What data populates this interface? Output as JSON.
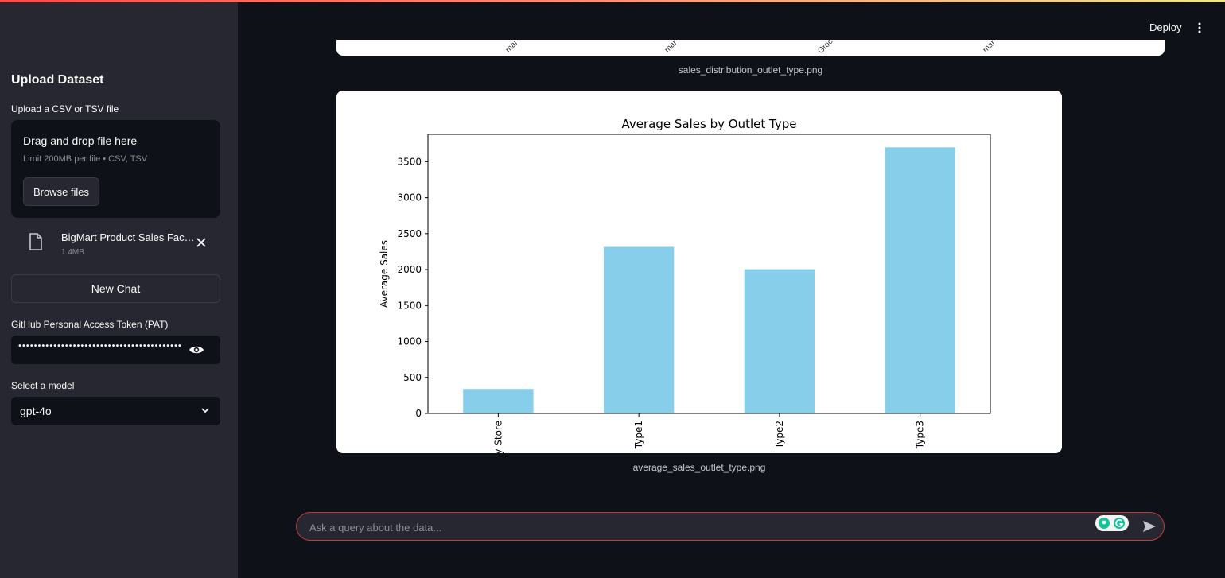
{
  "sidebar": {
    "title": "Upload Dataset",
    "upload_label": "Upload a CSV or TSV file",
    "dropzone": {
      "title": "Drag and drop file here",
      "subtitle": "Limit 200MB per file • CSV, TSV",
      "browse_label": "Browse files"
    },
    "file": {
      "name": "BigMart Product Sales Factors.csv",
      "size": "1.4MB"
    },
    "new_chat_label": "New Chat",
    "pat_label": "GitHub Personal Access Token (PAT)",
    "pat_value": "••••••••••••••••••••••••••••••••••••••••••••••••••••••",
    "model_label": "Select a model",
    "model_value": "gpt-4o"
  },
  "header": {
    "deploy_label": "Deploy",
    "menu_icon": "kebab-menu-icon"
  },
  "main": {
    "previous_image_caption": "sales_distribution_outlet_type.png",
    "previous_chart_tick_fragments": [
      "mar",
      "mar",
      "Groc",
      "mar"
    ],
    "chart_caption": "average_sales_outlet_type.png",
    "chat_placeholder": "Ask a query about the data..."
  },
  "chart_data": {
    "type": "bar",
    "title": "Average Sales by Outlet Type",
    "xlabel": "",
    "ylabel": "Average Sales",
    "categories": [
      "Grocery Store",
      "Type1",
      "Type2",
      "Type3"
    ],
    "values": [
      340,
      2316,
      2005,
      3700
    ],
    "ylim": [
      0,
      3880
    ],
    "yticks": [
      0,
      500,
      1000,
      1500,
      2000,
      2500,
      3000,
      3500
    ],
    "bar_color": "#87ceeb",
    "grid": false,
    "legend": "none"
  },
  "colors": {
    "accent": "#ff4b4b",
    "sidebar_bg": "#262730",
    "app_bg": "#0e1117"
  }
}
